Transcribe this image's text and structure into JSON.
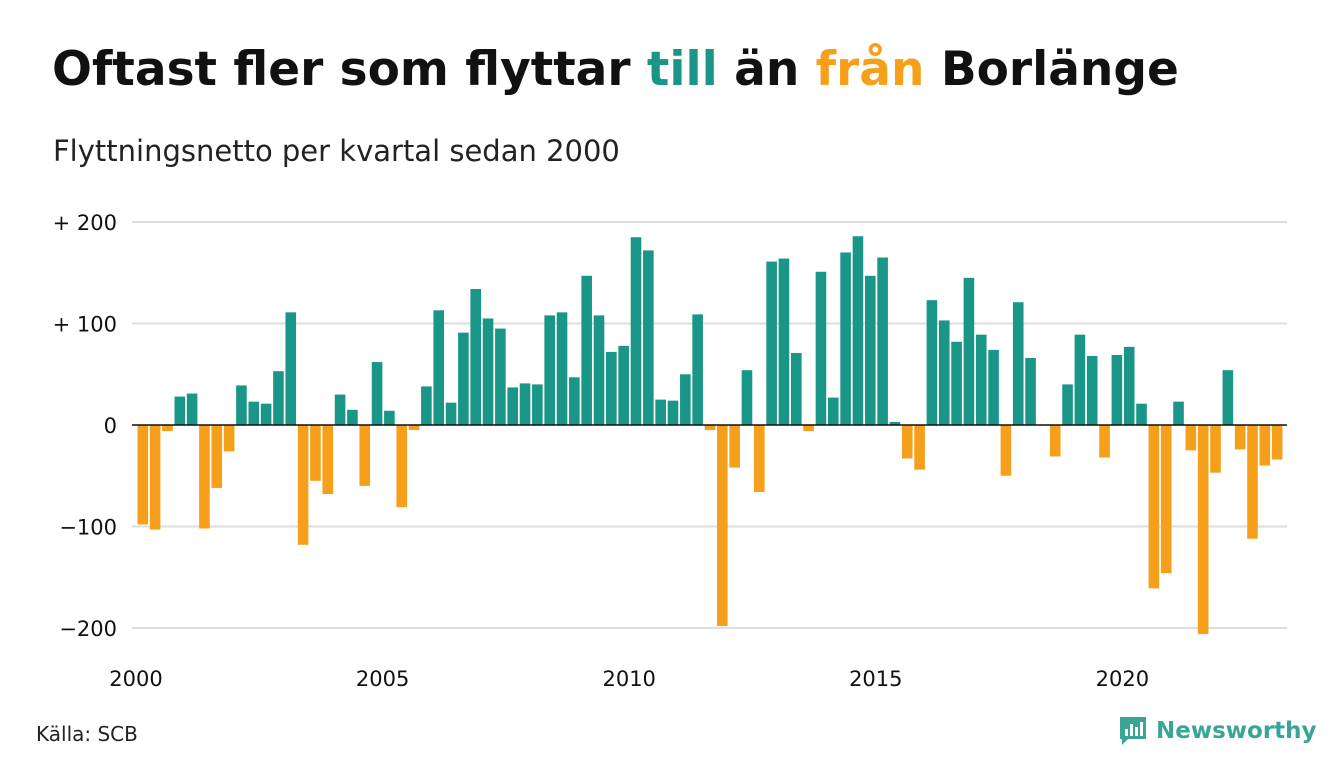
{
  "title": {
    "part1": "Oftast fler som flyttar ",
    "part2": "till",
    "part3": " än ",
    "part4": "från",
    "part5": " Borlänge"
  },
  "subtitle": "Flyttningsnetto per kvartal sedan 2000",
  "source": "Källa: SCB",
  "logo": {
    "text": "Newsworthy",
    "icon": "newsworthy-logo-icon"
  },
  "colors": {
    "positive": "#1a9688",
    "negative": "#f59f1b",
    "grid": "#dddddd",
    "axis": "#111111",
    "logo": "#3aa596"
  },
  "chart_data": {
    "type": "bar",
    "title": "Oftast fler som flyttar till än från Borlänge",
    "subtitle": "Flyttningsnetto per kvartal sedan 2000",
    "x_start": "2000 Q1",
    "frequency": "quarterly",
    "x_ticks": [
      "2000",
      "2005",
      "2010",
      "2015",
      "2020"
    ],
    "y_ticks": [
      {
        "value": 200,
        "label": "+ 200"
      },
      {
        "value": 100,
        "label": "+ 100"
      },
      {
        "value": 0,
        "label": "0"
      },
      {
        "value": -100,
        "label": "−100"
      },
      {
        "value": -200,
        "label": "−200"
      }
    ],
    "ylim": [
      -210,
      205
    ],
    "grid": true,
    "values": [
      -98,
      -103,
      -6,
      28,
      31,
      -102,
      -62,
      -26,
      39,
      23,
      21,
      53,
      111,
      -118,
      -55,
      -68,
      30,
      15,
      -60,
      62,
      14,
      -81,
      -5,
      38,
      113,
      22,
      91,
      134,
      105,
      95,
      37,
      41,
      40,
      108,
      111,
      47,
      147,
      108,
      72,
      78,
      185,
      172,
      25,
      24,
      50,
      109,
      -5,
      -198,
      -42,
      54,
      -66,
      161,
      164,
      71,
      -6,
      151,
      27,
      170,
      186,
      147,
      165,
      3,
      -33,
      -44,
      123,
      103,
      82,
      145,
      89,
      74,
      -50,
      121,
      66,
      0,
      -31,
      40,
      89,
      68,
      -32,
      69,
      77,
      21,
      -161,
      -146,
      23,
      -25,
      -206,
      -47,
      54,
      -24,
      -112,
      -40,
      -34
    ]
  }
}
